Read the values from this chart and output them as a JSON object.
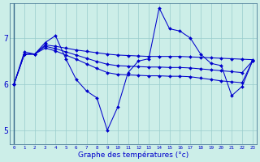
{
  "xlabel": "Graphe des températures (°c)",
  "bg_color": "#cceee8",
  "line_color": "#0000cc",
  "grid_color": "#99cccc",
  "spine_color": "#336688",
  "xlim": [
    -0.4,
    23.4
  ],
  "ylim": [
    4.7,
    7.75
  ],
  "yticks": [
    5,
    6,
    7
  ],
  "ytick_labels": [
    "5",
    "6",
    "7"
  ],
  "xticks": [
    0,
    1,
    2,
    3,
    4,
    5,
    6,
    7,
    8,
    9,
    10,
    11,
    12,
    13,
    14,
    15,
    16,
    17,
    18,
    19,
    20,
    21,
    22,
    23
  ],
  "series": [
    [
      6.0,
      6.7,
      6.65,
      6.9,
      7.05,
      6.55,
      6.1,
      5.85,
      5.7,
      5.0,
      5.5,
      6.25,
      6.5,
      6.55,
      7.65,
      7.2,
      7.15,
      7.0,
      6.65,
      6.45,
      6.4,
      5.75,
      5.95,
      6.5
    ],
    [
      6.0,
      6.65,
      6.65,
      6.85,
      6.82,
      6.78,
      6.74,
      6.71,
      6.68,
      6.65,
      6.63,
      6.62,
      6.61,
      6.6,
      6.6,
      6.6,
      6.6,
      6.59,
      6.58,
      6.57,
      6.56,
      6.55,
      6.54,
      6.53
    ],
    [
      6.0,
      6.65,
      6.65,
      6.82,
      6.77,
      6.7,
      6.63,
      6.56,
      6.49,
      6.43,
      6.4,
      6.39,
      6.38,
      6.37,
      6.37,
      6.36,
      6.36,
      6.35,
      6.33,
      6.31,
      6.29,
      6.27,
      6.25,
      6.5
    ],
    [
      6.0,
      6.65,
      6.65,
      6.78,
      6.72,
      6.63,
      6.54,
      6.44,
      6.34,
      6.25,
      6.21,
      6.2,
      6.19,
      6.18,
      6.18,
      6.17,
      6.17,
      6.16,
      6.13,
      6.1,
      6.07,
      6.05,
      6.03,
      6.5
    ]
  ]
}
